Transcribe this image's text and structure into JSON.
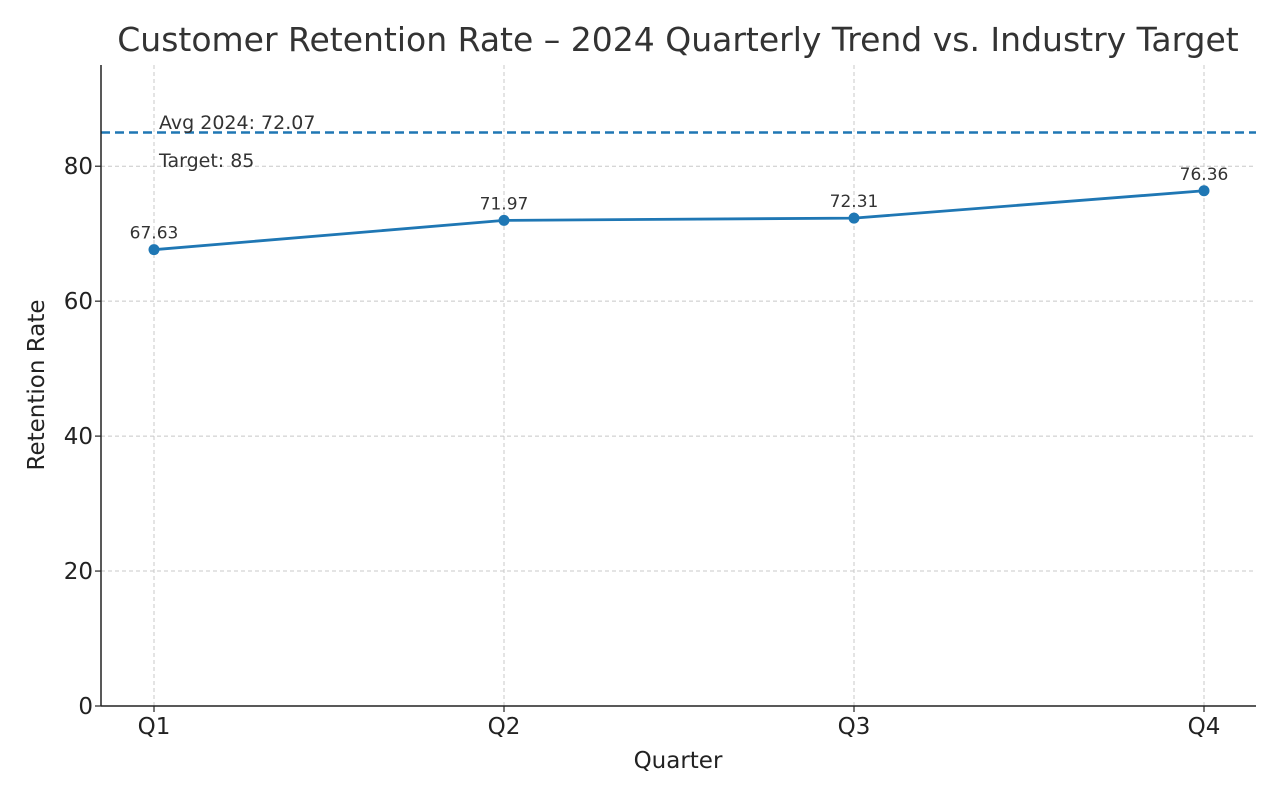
{
  "chart_data": {
    "type": "line",
    "title": "Customer Retention Rate – 2024 Quarterly Trend vs. Industry Target",
    "xlabel": "Quarter",
    "ylabel": "Retention Rate",
    "categories": [
      "Q1",
      "Q2",
      "Q3",
      "Q4"
    ],
    "series": [
      {
        "values": [
          67.63,
          71.97,
          72.31,
          76.36
        ],
        "data_labels": [
          "67.63",
          "71.97",
          "72.31",
          "76.36"
        ],
        "color": "#1f77b4"
      }
    ],
    "reference_lines": [
      {
        "value": 85,
        "style": "dashed",
        "color": "#1f77b4"
      }
    ],
    "annotations": [
      "Avg 2024: 72.07",
      "Target: 85"
    ],
    "ylim": [
      0,
      95
    ],
    "yticks": [
      0,
      20,
      40,
      60,
      80
    ],
    "ytick_labels": [
      "0",
      "20",
      "40",
      "60",
      "80"
    ],
    "grid": true,
    "grid_color": "#c8c8c8",
    "axis_color": "#222222"
  }
}
